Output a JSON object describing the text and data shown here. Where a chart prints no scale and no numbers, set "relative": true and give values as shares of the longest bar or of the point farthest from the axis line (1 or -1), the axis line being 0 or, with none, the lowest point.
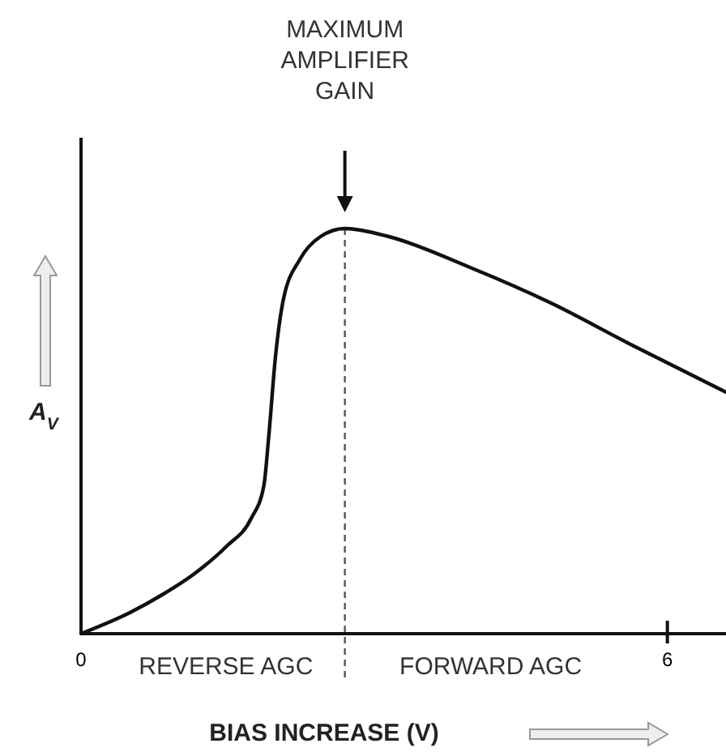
{
  "chart_data": {
    "type": "line",
    "relative": true,
    "xlabel": "BIAS INCREASE (V)",
    "ylabel": "A$_{V}$",
    "x": [
      0,
      0.5,
      0.83,
      1.16,
      1.49,
      1.74,
      1.87,
      1.92,
      1.99,
      2.07,
      2.24,
      2.45,
      2.7,
      3.15,
      3.98,
      4.81,
      5.64,
      6.6
    ],
    "series": [
      {
        "color": "#111111",
        "values": [
          0,
          0.052,
          0.096,
          0.148,
          0.216,
          0.284,
          0.364,
          0.484,
          0.684,
          0.824,
          0.924,
          0.98,
          1,
          0.98,
          0.904,
          0.816,
          0.712,
          0.596
        ]
      }
    ],
    "xlim": [
      0,
      6.6
    ],
    "xticks": [
      0,
      6
    ],
    "ref_lines": [
      {
        "axis": "x",
        "value": 2.7,
        "line_style": "dashed",
        "color": "#555555"
      }
    ],
    "annotations": [
      "MAXIMUM AMPLIFIER GAIN",
      "REVERSE AGC",
      "FORWARD AGC"
    ],
    "grid": false,
    "legend": false,
    "marker": "none",
    "line_style": "solid"
  }
}
